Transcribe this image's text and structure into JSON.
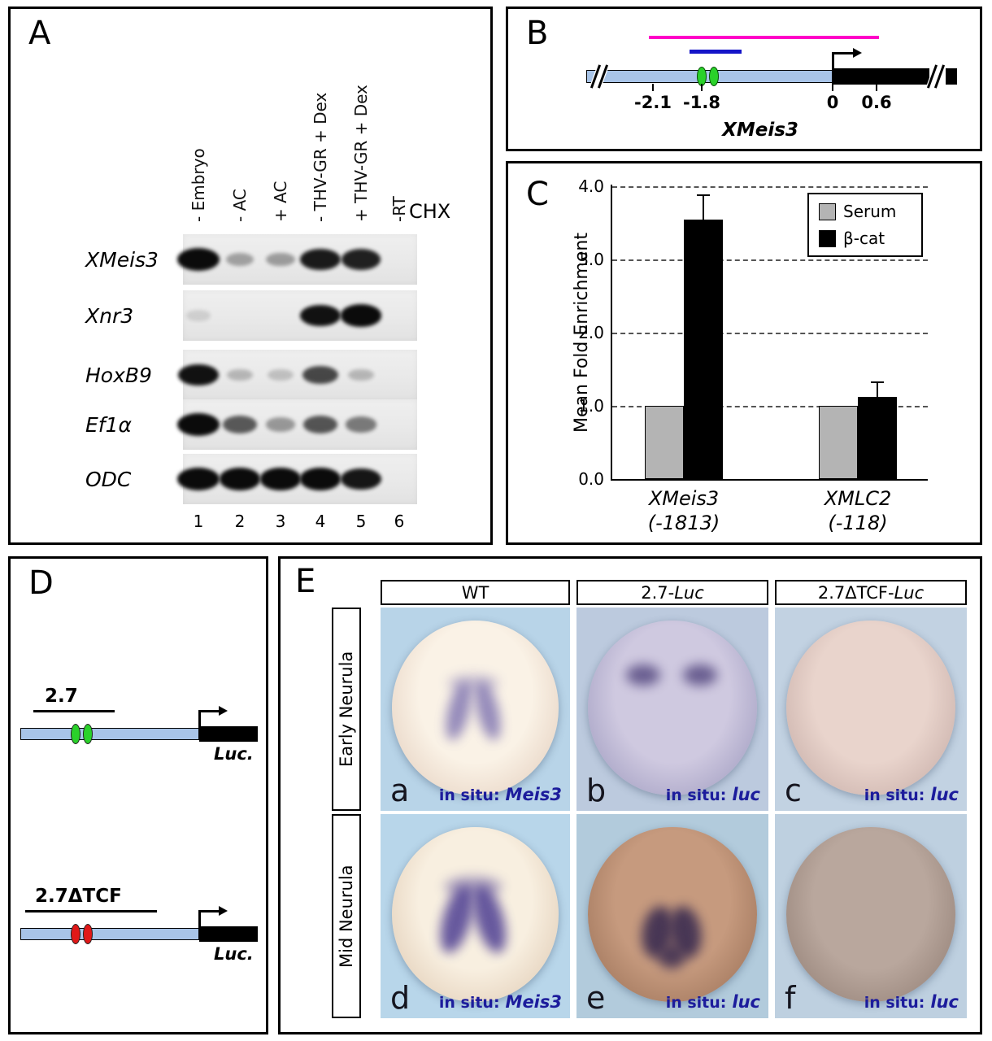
{
  "panel_a": {
    "label": "A",
    "chx_label": "CHX",
    "lane_labels": [
      "- Embryo",
      "- AC",
      "+ AC",
      "- THV-GR + Dex",
      "+ THV-GR + Dex",
      "-RT"
    ],
    "lane_numbers": [
      "1",
      "2",
      "3",
      "4",
      "5",
      "6"
    ],
    "gels": [
      {
        "gene": "XMeis3",
        "bands": [
          1.0,
          0.28,
          0.3,
          0.88,
          0.85,
          0
        ]
      },
      {
        "gene": "Xnr3",
        "bands": [
          0.07,
          0,
          0,
          0.92,
          0.95,
          0
        ]
      },
      {
        "gene": "HoxB9",
        "bands": [
          0.92,
          0.18,
          0.14,
          0.68,
          0.18,
          0
        ]
      },
      {
        "gene": "Ef1α",
        "bands": [
          1.0,
          0.6,
          0.32,
          0.62,
          0.45,
          0
        ]
      },
      {
        "gene": "ODC",
        "bands": [
          1.0,
          0.95,
          0.95,
          0.95,
          0.9,
          0
        ]
      }
    ]
  },
  "panel_b": {
    "label": "B",
    "gene": "XMeis3",
    "tick_labels": [
      "-2.1",
      "-1.8",
      "0",
      "0.6"
    ],
    "colors": {
      "chip_amplicon_line": "#ff00c8",
      "probe_line": "#1414c8",
      "promoter_bar": "#a8c4e8",
      "tcf_sites": "#2ad12a"
    }
  },
  "panel_c": {
    "label": "C",
    "chart_data": {
      "type": "bar",
      "title": "",
      "ylabel": "Mean Fold Enrichment",
      "xlabel": "",
      "ylim": [
        0.0,
        4.0
      ],
      "yticks": [
        "4.0",
        "3.0",
        "2.0",
        "1.0",
        "0.0"
      ],
      "grid": "dashed horizontal lines at 1.0, 2.0, 3.0, 4.0",
      "legend_position": "top-right",
      "categories": [
        {
          "gene": "XMeis3",
          "position": "(-1813)"
        },
        {
          "gene": "XMLC2",
          "position": "(-118)"
        }
      ],
      "series": [
        {
          "name": "Serum",
          "color": "#b4b4b4",
          "values": [
            1.0,
            1.0
          ],
          "errors": [
            0,
            0
          ]
        },
        {
          "name": "β-cat",
          "color": "#000000",
          "values": [
            3.55,
            1.12
          ],
          "errors": [
            0.33,
            0.2
          ]
        }
      ]
    }
  },
  "panel_d": {
    "label": "D",
    "bar_color": "#a8c4e8",
    "constructs": [
      {
        "name": "2.7",
        "reporter": "Luc.",
        "site_color": "#2ad12a"
      },
      {
        "name": "2.7ΔTCF",
        "reporter": "Luc.",
        "site_color": "#e01818"
      }
    ]
  },
  "panel_e": {
    "label": "E",
    "col_headers": [
      {
        "prefix": "WT",
        "italic": ""
      },
      {
        "prefix": "2.7-",
        "italic": "Luc"
      },
      {
        "prefix": "2.7ΔTCF-",
        "italic": "Luc"
      }
    ],
    "row_headers": [
      "Early Neurula",
      "Mid Neurula"
    ],
    "cells": [
      {
        "letter": "a",
        "caption_prefix": "in situ:",
        "probe": "Meis3",
        "bg": "#b8d4e8",
        "body_inner": "#faf2e6",
        "body_outer": "#e6d2c2",
        "stain": "stripes",
        "stain_color": "#6a5fa8"
      },
      {
        "letter": "b",
        "caption_prefix": "in situ:",
        "probe": "luc",
        "bg": "#bccade",
        "body_inner": "#cfc9e0",
        "body_outer": "#a39fc2",
        "stain": "spots",
        "stain_color": "#473a75"
      },
      {
        "letter": "c",
        "caption_prefix": "in situ:",
        "probe": "luc",
        "bg": "#c2d2e2",
        "body_inner": "#e9d4cc",
        "body_outer": "#c9b0aa",
        "stain": "none",
        "stain_color": ""
      },
      {
        "letter": "d",
        "caption_prefix": "in situ:",
        "probe": "Meis3",
        "bg": "#b8d6ea",
        "body_inner": "#f8efe0",
        "body_outer": "#e2ceb8",
        "stain": "stripes-strong",
        "stain_color": "#4d3e92"
      },
      {
        "letter": "e",
        "caption_prefix": "in situ:",
        "probe": "luc",
        "bg": "#b2cbdc",
        "body_inner": "#c69a7e",
        "body_outer": "#a0765c",
        "stain": "butterfly",
        "stain_color": "#33264e"
      },
      {
        "letter": "f",
        "caption_prefix": "in situ:",
        "probe": "luc",
        "bg": "#bed0e0",
        "body_inner": "#b9a79d",
        "body_outer": "#968379",
        "stain": "none",
        "stain_color": ""
      }
    ]
  }
}
